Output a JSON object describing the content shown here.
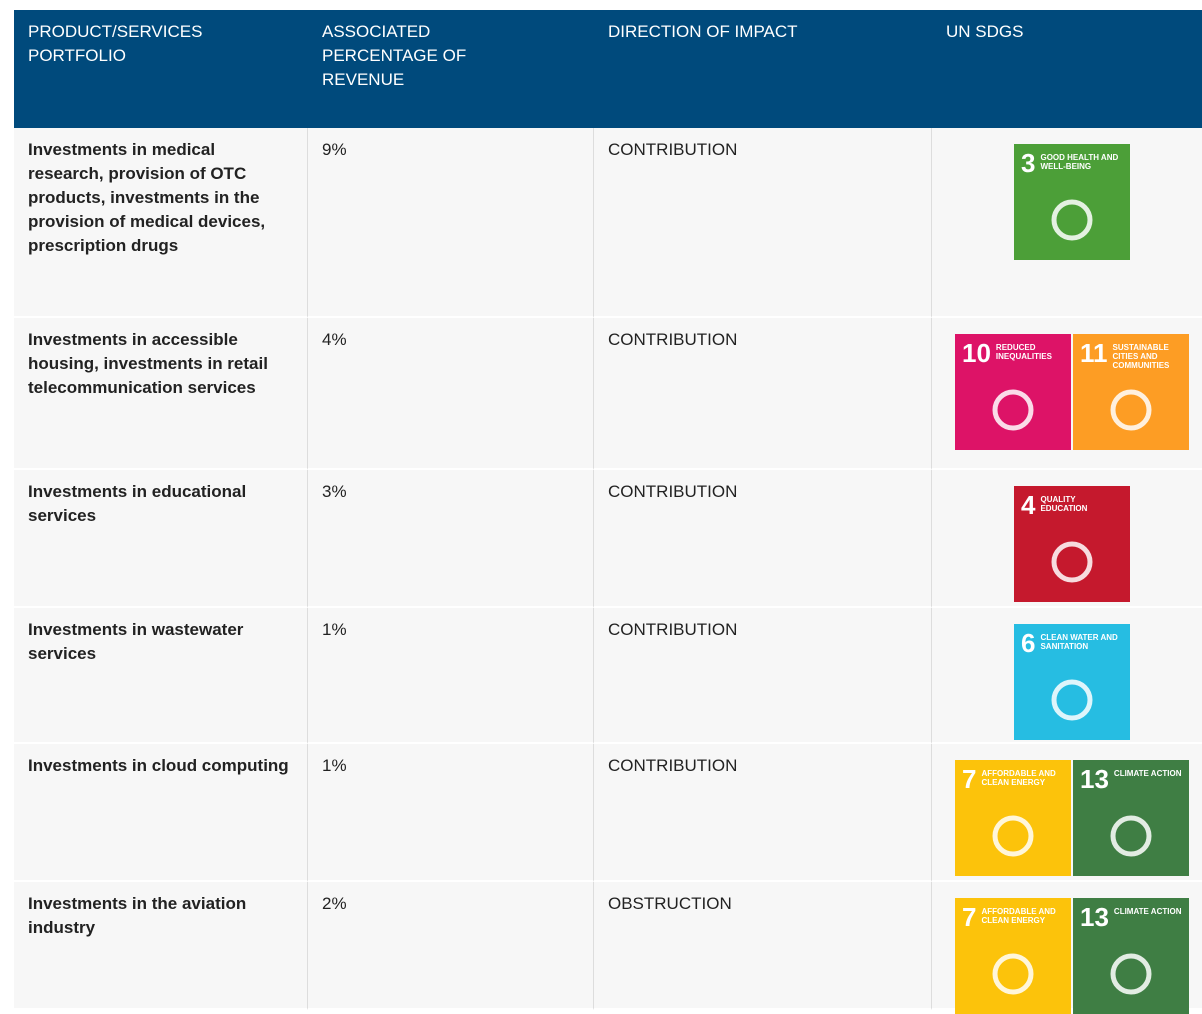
{
  "table": {
    "header": [
      "PRODUCT/SERVICES PORTFOLIO",
      "ASSOCIATED PERCENTAGE OF REVENUE",
      "DIRECTION OF IMPACT",
      "UN SDGS"
    ],
    "rows": [
      {
        "portfolio": "Investments in medical research, provision of OTC products, investments in the provision of medical devices, prescription drugs",
        "percentage": "9%",
        "direction": "CONTRIBUTION",
        "sdgs": [
          {
            "number": "3",
            "name": "GOOD HEALTH AND WELL-BEING",
            "color": "#4c9f38"
          }
        ]
      },
      {
        "portfolio": "Investments in accessible housing, investments in retail telecommunication services",
        "percentage": "4%",
        "direction": "CONTRIBUTION",
        "sdgs": [
          {
            "number": "10",
            "name": "REDUCED INEQUALITIES",
            "color": "#dd1367"
          },
          {
            "number": "11",
            "name": "SUSTAINABLE CITIES AND COMMUNITIES",
            "color": "#fd9d24"
          }
        ]
      },
      {
        "portfolio": "Investments in educational services",
        "percentage": "3%",
        "direction": "CONTRIBUTION",
        "sdgs": [
          {
            "number": "4",
            "name": "QUALITY EDUCATION",
            "color": "#c5192d"
          }
        ]
      },
      {
        "portfolio": "Investments in wastewater services",
        "percentage": "1%",
        "direction": "CONTRIBUTION",
        "sdgs": [
          {
            "number": "6",
            "name": "CLEAN WATER AND SANITATION",
            "color": "#26bde2"
          }
        ]
      },
      {
        "portfolio": "Investments in cloud computing",
        "percentage": "1%",
        "direction": "CONTRIBUTION",
        "sdgs": [
          {
            "number": "7",
            "name": "AFFORDABLE AND CLEAN ENERGY",
            "color": "#fcc30b"
          },
          {
            "number": "13",
            "name": "CLIMATE ACTION",
            "color": "#3f7e44"
          }
        ]
      },
      {
        "portfolio": "Investments in the aviation industry",
        "percentage": "2%",
        "direction": "OBSTRUCTION",
        "sdgs": [
          {
            "number": "7",
            "name": "AFFORDABLE AND CLEAN ENERGY",
            "color": "#fcc30b"
          },
          {
            "number": "13",
            "name": "CLIMATE ACTION",
            "color": "#3f7e44"
          }
        ]
      }
    ]
  }
}
